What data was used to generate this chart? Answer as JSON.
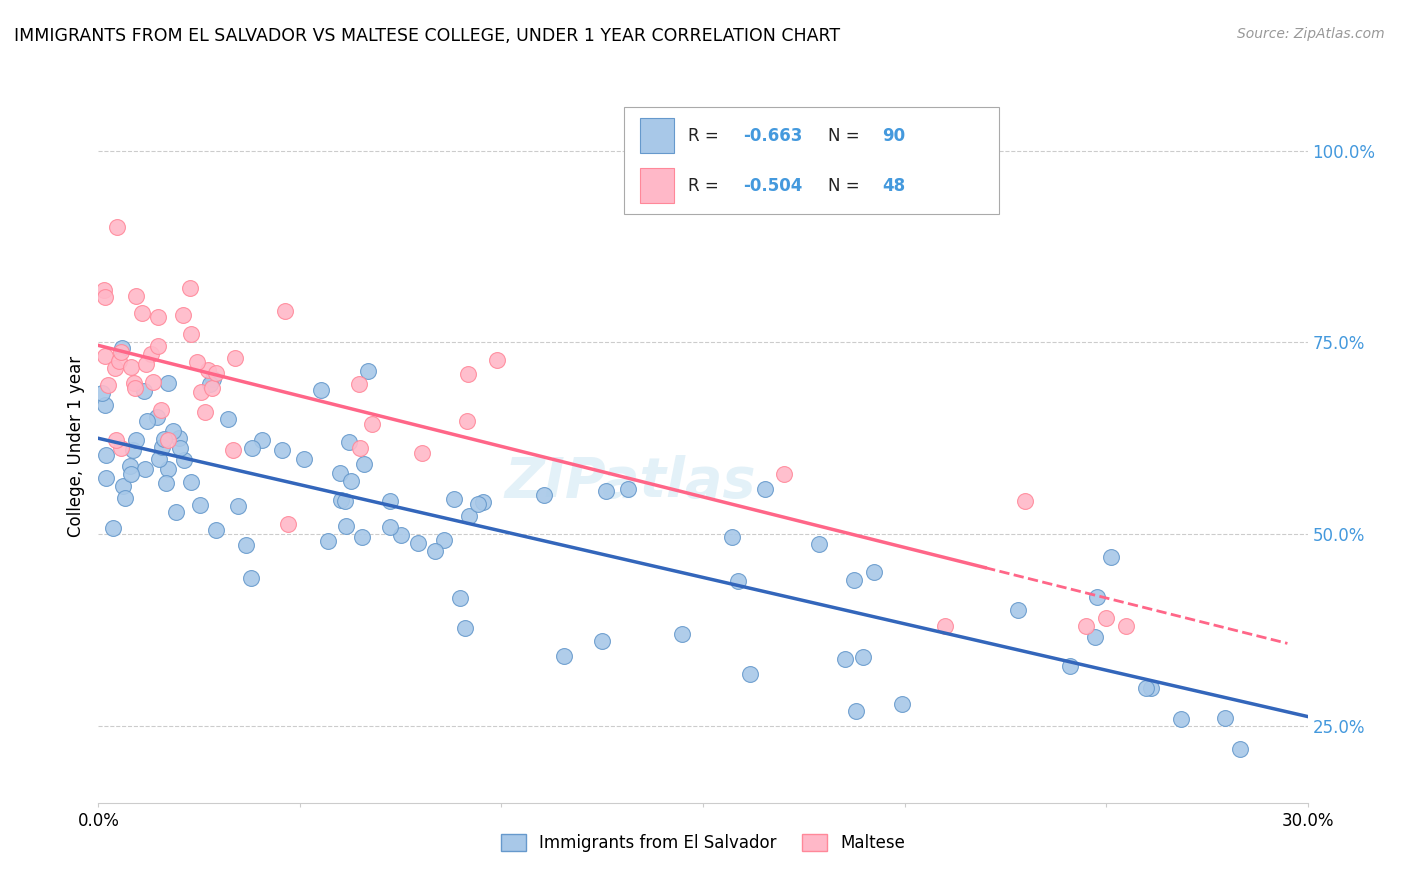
{
  "title": "IMMIGRANTS FROM EL SALVADOR VS MALTESE COLLEGE, UNDER 1 YEAR CORRELATION CHART",
  "source": "Source: ZipAtlas.com",
  "ylabel": "College, Under 1 year",
  "right_yticks": [
    "100.0%",
    "75.0%",
    "50.0%",
    "25.0%"
  ],
  "right_ytick_vals": [
    1.0,
    0.75,
    0.5,
    0.25
  ],
  "blue_color": "#A8C8E8",
  "blue_edge_color": "#6699CC",
  "pink_color": "#FFB8C8",
  "pink_edge_color": "#FF8899",
  "blue_line_color": "#3366BB",
  "pink_line_color": "#FF6688",
  "right_tick_color": "#4499DD",
  "xmin": 0.0,
  "xmax": 0.3,
  "ymin": 0.15,
  "ymax": 1.08,
  "watermark": "ZIPatlas",
  "legend_r1": "R = ",
  "legend_v1": "-0.663",
  "legend_n1_label": "N = ",
  "legend_n1": "90",
  "legend_r2": "R = ",
  "legend_v2": "-0.504",
  "legend_n2_label": "N = ",
  "legend_n2": "48"
}
